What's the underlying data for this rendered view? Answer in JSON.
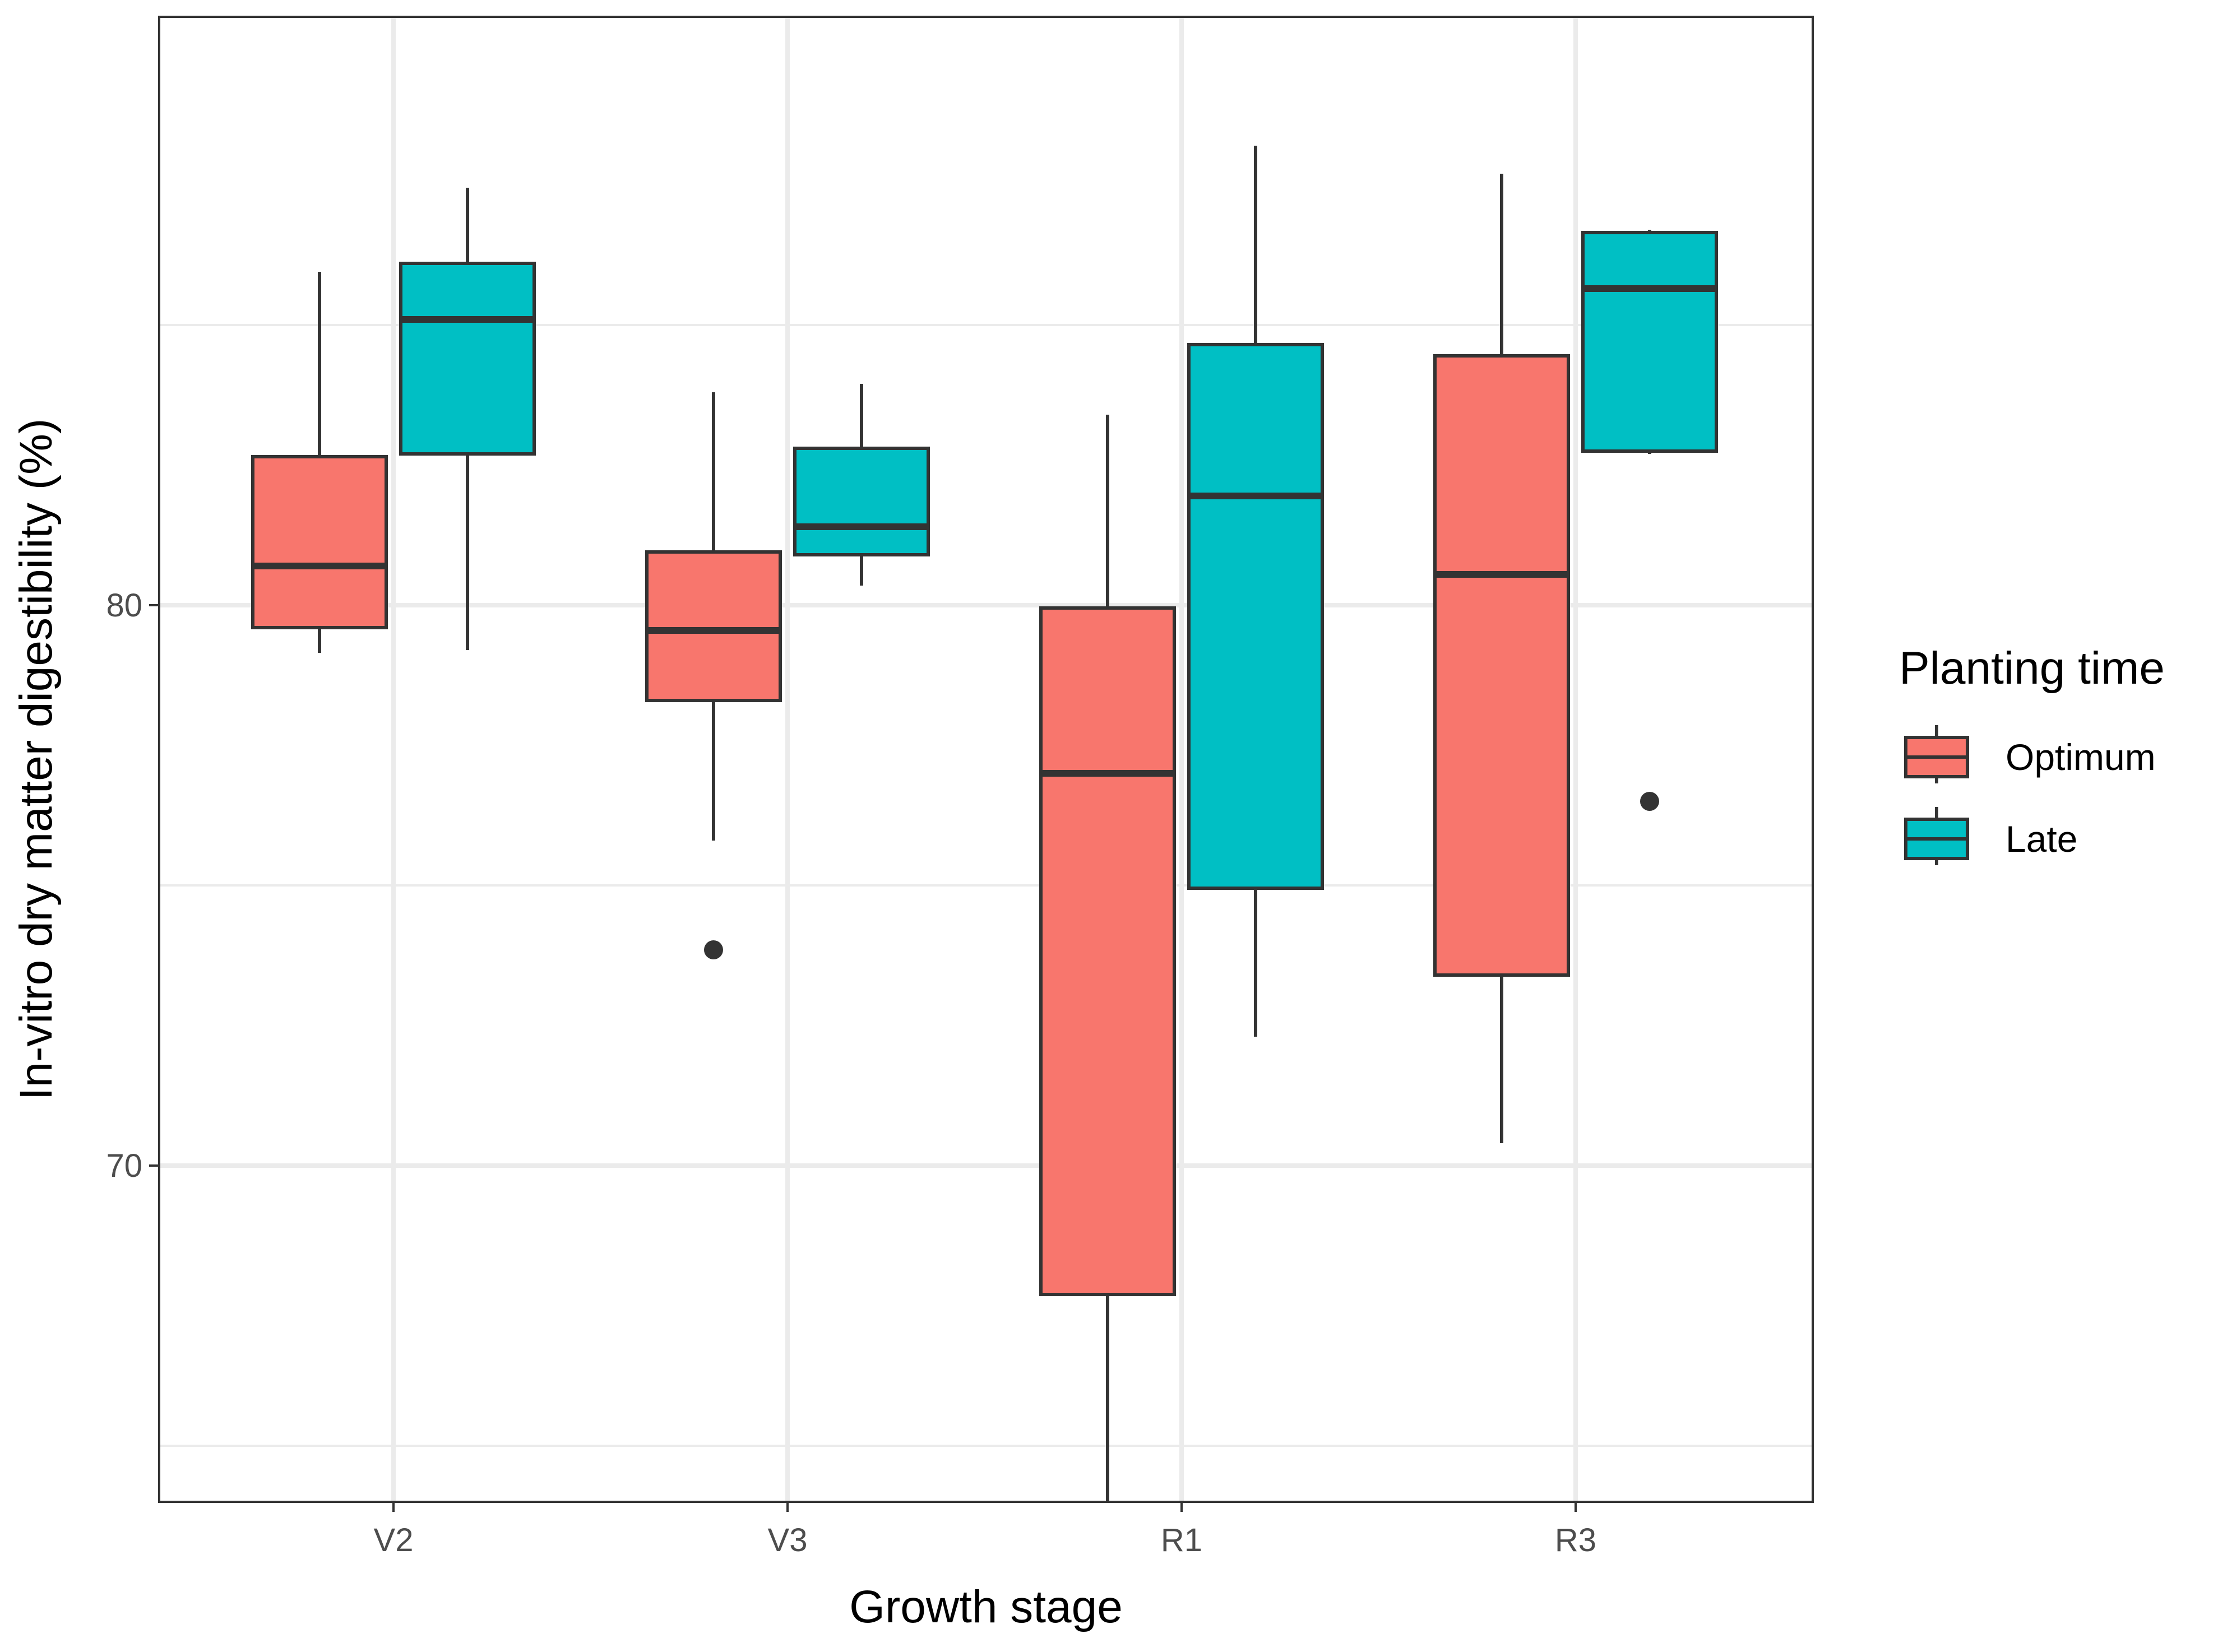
{
  "chart_data": {
    "type": "boxplot",
    "xlabel": "Growth stage",
    "ylabel": "In-vitro dry matter digestibility (%)",
    "categories": [
      "V2",
      "V3",
      "R1",
      "R3"
    ],
    "ylim": [
      64,
      90.5
    ],
    "yticks": [
      70,
      80
    ],
    "yminor": [
      65,
      75,
      85
    ],
    "legend": {
      "title": "Planting time",
      "position": "right"
    },
    "series": [
      {
        "name": "Optimum",
        "color": "#F8766D",
        "boxes": [
          {
            "category": "V2",
            "whisker_low": 79.15,
            "q1": 79.6,
            "median": 80.7,
            "q3": 82.65,
            "whisker_high": 85.95,
            "outliers": []
          },
          {
            "category": "V3",
            "whisker_low": 75.8,
            "q1": 78.3,
            "median": 79.55,
            "q3": 80.95,
            "whisker_high": 83.8,
            "outliers": [
              73.85
            ]
          },
          {
            "category": "R1",
            "whisker_low": 64.0,
            "q1": 67.7,
            "median": 77.0,
            "q3": 79.95,
            "whisker_high": 83.4,
            "outliers": []
          },
          {
            "category": "R3",
            "whisker_low": 70.4,
            "q1": 73.4,
            "median": 80.55,
            "q3": 84.45,
            "whisker_high": 87.7,
            "outliers": []
          }
        ]
      },
      {
        "name": "Late",
        "color": "#00BFC4",
        "boxes": [
          {
            "category": "V2",
            "whisker_low": 79.2,
            "q1": 82.7,
            "median": 85.1,
            "q3": 86.1,
            "whisker_high": 87.45,
            "outliers": []
          },
          {
            "category": "V3",
            "whisker_low": 80.35,
            "q1": 80.9,
            "median": 81.4,
            "q3": 82.8,
            "whisker_high": 83.95,
            "outliers": []
          },
          {
            "category": "R1",
            "whisker_low": 72.3,
            "q1": 74.95,
            "median": 81.95,
            "q3": 84.65,
            "whisker_high": 88.2,
            "outliers": []
          },
          {
            "category": "R3",
            "whisker_low": 82.7,
            "q1": 82.75,
            "median": 85.65,
            "q3": 86.65,
            "whisker_high": 86.7,
            "outliers": [
              76.5
            ]
          }
        ]
      }
    ]
  }
}
